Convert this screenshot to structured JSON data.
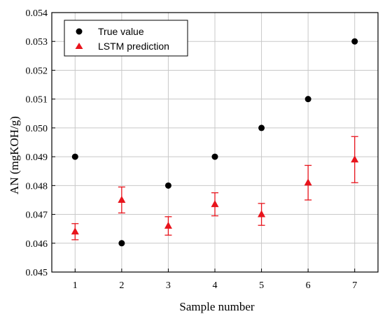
{
  "chart_data": {
    "type": "scatter",
    "title": "",
    "xlabel": "Sample number",
    "ylabel": "AN (mgKOH/g)",
    "xlim": [
      0.5,
      7.5
    ],
    "ylim": [
      0.045,
      0.054
    ],
    "xticks": [
      1,
      2,
      3,
      4,
      5,
      6,
      7
    ],
    "yticks": [
      0.045,
      0.046,
      0.047,
      0.048,
      0.049,
      0.05,
      0.051,
      0.052,
      0.053,
      0.054
    ],
    "ytick_labels": [
      "0.045",
      "0.046",
      "0.047",
      "0.048",
      "0.049",
      "0.050",
      "0.051",
      "0.052",
      "0.053",
      "0.054"
    ],
    "grid": true,
    "legend_position": "top-left",
    "series": [
      {
        "name": "True value",
        "marker": "circle",
        "color": "#000000",
        "x": [
          1,
          2,
          3,
          4,
          5,
          6,
          7
        ],
        "y": [
          0.049,
          0.046,
          0.048,
          0.049,
          0.05,
          0.051,
          0.053
        ]
      },
      {
        "name": "LSTM prediction",
        "marker": "triangle",
        "color": "#e8141c",
        "x": [
          1,
          2,
          3,
          4,
          5,
          6,
          7
        ],
        "y": [
          0.0464,
          0.0475,
          0.0466,
          0.04735,
          0.047,
          0.0481,
          0.0489
        ],
        "error": [
          0.00028,
          0.00045,
          0.00032,
          0.0004,
          0.00038,
          0.0006,
          0.0008
        ]
      }
    ]
  }
}
